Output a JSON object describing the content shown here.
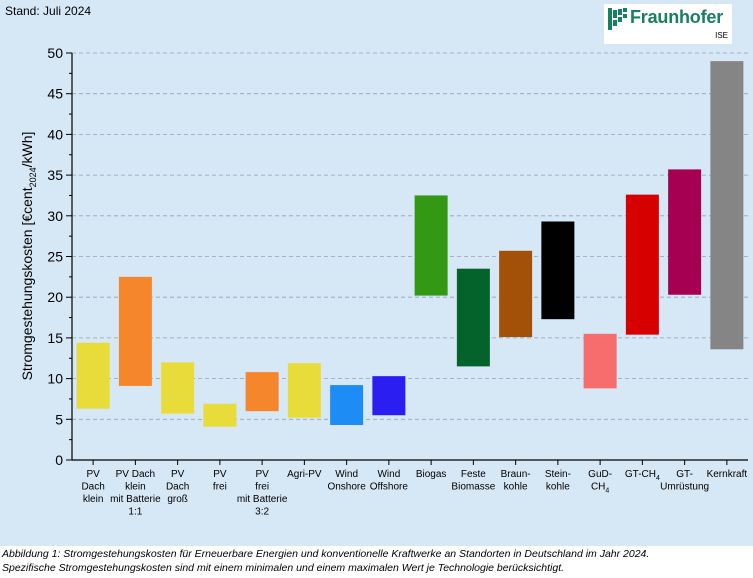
{
  "header": {
    "stand": "Stand: Juli 2024"
  },
  "logo": {
    "name": "Fraunhofer",
    "sub": "ISE",
    "color": "#17805f"
  },
  "caption": {
    "line1": "Abbildung 1: Stromgestehungskosten für Erneuerbare Energien und konventionelle Kraftwerke an Standorten in Deutschland im Jahr 2024.",
    "line2": "Spezifische Stromgestehungskosten sind mit einem minimalen und einem maximalen Wert je Technologie berücksichtigt."
  },
  "chart_data": {
    "type": "bar",
    "subtype": "floating range bars (min–max)",
    "ylabel": "Stromgestehungskosten [€cent2024/kWh]",
    "ylabel_parts": [
      "Stromgestehungskosten [€cent",
      "2024",
      "/kWh]"
    ],
    "ylim": [
      0,
      50
    ],
    "yticks": [
      0,
      5,
      10,
      15,
      20,
      25,
      30,
      35,
      40,
      45,
      50
    ],
    "grid": "horizontal dashed",
    "legend": "none",
    "categories": [
      {
        "label": [
          "PV",
          "Dach",
          "klein"
        ],
        "min": 6.3,
        "max": 14.4,
        "color": "#e8dc3a"
      },
      {
        "label": [
          "PV Dach",
          "klein",
          "mit Batterie",
          "1:1"
        ],
        "min": 9.1,
        "max": 22.5,
        "color": "#f5862b"
      },
      {
        "label": [
          "PV",
          "Dach",
          "groß"
        ],
        "min": 5.7,
        "max": 12.0,
        "color": "#e8dc3a"
      },
      {
        "label": [
          "PV",
          "frei"
        ],
        "min": 4.1,
        "max": 6.9,
        "color": "#e8dc3a"
      },
      {
        "label": [
          "PV",
          "frei",
          "mit Batterie",
          "3:2"
        ],
        "min": 6.0,
        "max": 10.8,
        "color": "#f5862b"
      },
      {
        "label": [
          "Agri-PV"
        ],
        "min": 5.2,
        "max": 11.9,
        "color": "#e8dc3a"
      },
      {
        "label": [
          "Wind",
          "Onshore"
        ],
        "min": 4.3,
        "max": 9.2,
        "color": "#1e8cf5"
      },
      {
        "label": [
          "Wind",
          "Offshore"
        ],
        "min": 5.5,
        "max": 10.3,
        "color": "#2a1ef0"
      },
      {
        "label": [
          "Biogas"
        ],
        "min": 20.2,
        "max": 32.5,
        "color": "#339912"
      },
      {
        "label": [
          "Feste",
          "Biomasse"
        ],
        "min": 11.5,
        "max": 23.5,
        "color": "#03632a"
      },
      {
        "label": [
          "Braun-",
          "kohle"
        ],
        "min": 15.1,
        "max": 25.7,
        "color": "#a35008"
      },
      {
        "label": [
          "Stein-",
          "kohle"
        ],
        "min": 17.3,
        "max": 29.3,
        "color": "#000000"
      },
      {
        "label": [
          "GuD-",
          "CH4"
        ],
        "min": 8.8,
        "max": 15.5,
        "color": "#f76d6d"
      },
      {
        "label": [
          "GT-CH4"
        ],
        "min": 15.4,
        "max": 32.6,
        "color": "#d60000"
      },
      {
        "label": [
          "GT-",
          "Umrüstung"
        ],
        "min": 20.3,
        "max": 35.7,
        "color": "#a50052"
      },
      {
        "label": [
          "Kernkraft"
        ],
        "min": 13.6,
        "max": 49.0,
        "color": "#858585"
      }
    ]
  }
}
